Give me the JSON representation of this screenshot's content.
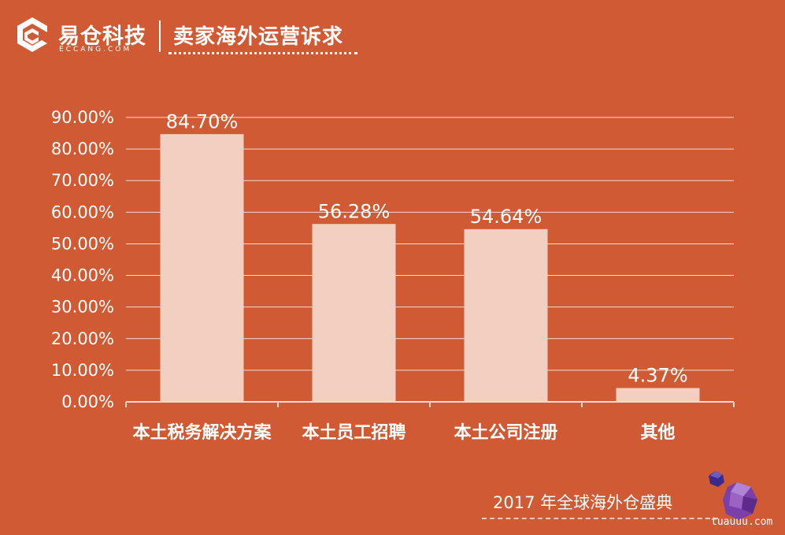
{
  "header": {
    "brand_name": "易仓科技",
    "brand_domain": "ECCANG.COM",
    "page_title": "卖家海外运营诉求"
  },
  "footer": {
    "event_text": "2017 年全球海外仓盛典",
    "watermark": "tuauuu.com"
  },
  "colors": {
    "background": "#d05a33",
    "bar": "#f2cfc0",
    "text": "#ffffff",
    "gridline": "#f6d9cc"
  },
  "chart_data": {
    "type": "bar",
    "categories": [
      "本土税务解决方案",
      "本土员工招聘",
      "本土公司注册",
      "其他"
    ],
    "values": [
      84.7,
      56.28,
      54.64,
      4.37
    ],
    "data_labels": [
      "84.70%",
      "56.28%",
      "54.64%",
      "4.37%"
    ],
    "title": "",
    "xlabel": "",
    "ylabel": "",
    "ylim": [
      0,
      90
    ],
    "yticks": [
      0,
      10,
      20,
      30,
      40,
      50,
      60,
      70,
      80,
      90
    ],
    "ytick_labels": [
      "0.00%",
      "10.00%",
      "20.00%",
      "30.00%",
      "40.00%",
      "50.00%",
      "60.00%",
      "70.00%",
      "80.00%",
      "90.00%"
    ],
    "grid": true,
    "legend": "none"
  }
}
